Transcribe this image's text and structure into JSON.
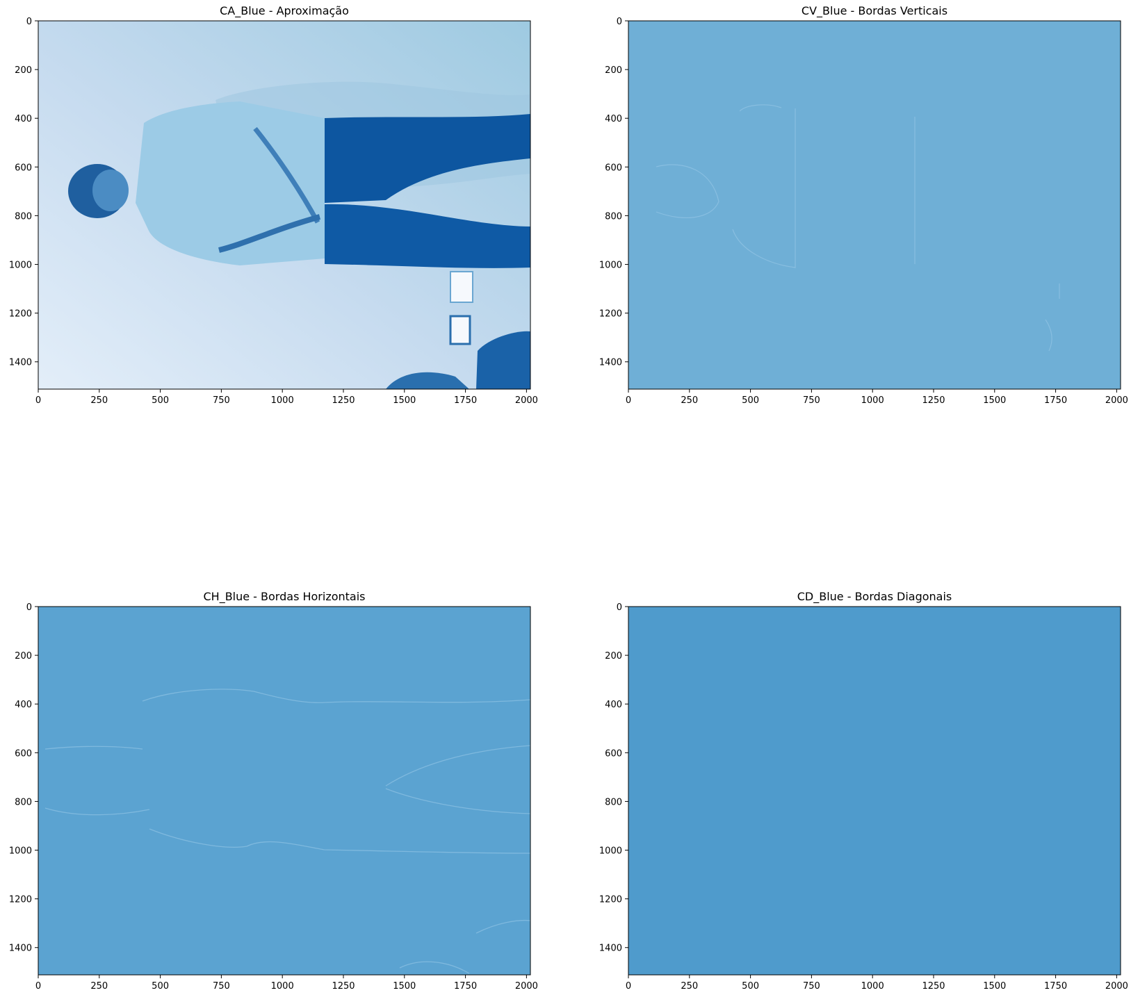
{
  "figure": {
    "background": "#ffffff",
    "colormap": "Blues"
  },
  "chart_data": [
    {
      "type": "heatmap",
      "title": "CA_Blue - Aproximação",
      "xlabel": "",
      "ylabel": "",
      "xlim": [
        0,
        2016
      ],
      "ylim": [
        1512,
        0
      ],
      "xticks": [
        0,
        250,
        500,
        750,
        1000,
        1250,
        1500,
        1750,
        2000
      ],
      "yticks": [
        0,
        200,
        400,
        600,
        800,
        1000,
        1200,
        1400
      ],
      "grid": false,
      "legend": "none",
      "fill_color": "#a6cbe3",
      "content": "wavelet approximation coefficients of the blue channel: rotated photo of a man standing against a wall"
    },
    {
      "type": "heatmap",
      "title": "CV_Blue - Bordas Verticais",
      "xlabel": "",
      "ylabel": "",
      "xlim": [
        0,
        2016
      ],
      "ylim": [
        1512,
        0
      ],
      "xticks": [
        0,
        250,
        500,
        750,
        1000,
        1250,
        1500,
        1750,
        2000
      ],
      "yticks": [
        0,
        200,
        400,
        600,
        800,
        1000,
        1200,
        1400
      ],
      "grid": false,
      "legend": "none",
      "fill_color": "#6fafd6",
      "content": "vertical detail coefficients, nearly uniform with faint edge outlines"
    },
    {
      "type": "heatmap",
      "title": "CH_Blue - Bordas Horizontais",
      "xlabel": "",
      "ylabel": "",
      "xlim": [
        0,
        2016
      ],
      "ylim": [
        1512,
        0
      ],
      "xticks": [
        0,
        250,
        500,
        750,
        1000,
        1250,
        1500,
        1750,
        2000
      ],
      "yticks": [
        0,
        200,
        400,
        600,
        800,
        1000,
        1200,
        1400
      ],
      "grid": false,
      "legend": "none",
      "fill_color": "#5ba3d1",
      "content": "horizontal detail coefficients, nearly uniform with faint edge outlines"
    },
    {
      "type": "heatmap",
      "title": "CD_Blue - Bordas Diagonais",
      "xlabel": "",
      "ylabel": "",
      "xlim": [
        0,
        2016
      ],
      "ylim": [
        1512,
        0
      ],
      "xticks": [
        0,
        250,
        500,
        750,
        1000,
        1250,
        1500,
        1750,
        2000
      ],
      "yticks": [
        0,
        200,
        400,
        600,
        800,
        1000,
        1200,
        1400
      ],
      "grid": false,
      "legend": "none",
      "fill_color": "#4f9bcc",
      "content": "diagonal detail coefficients, almost uniform"
    }
  ]
}
